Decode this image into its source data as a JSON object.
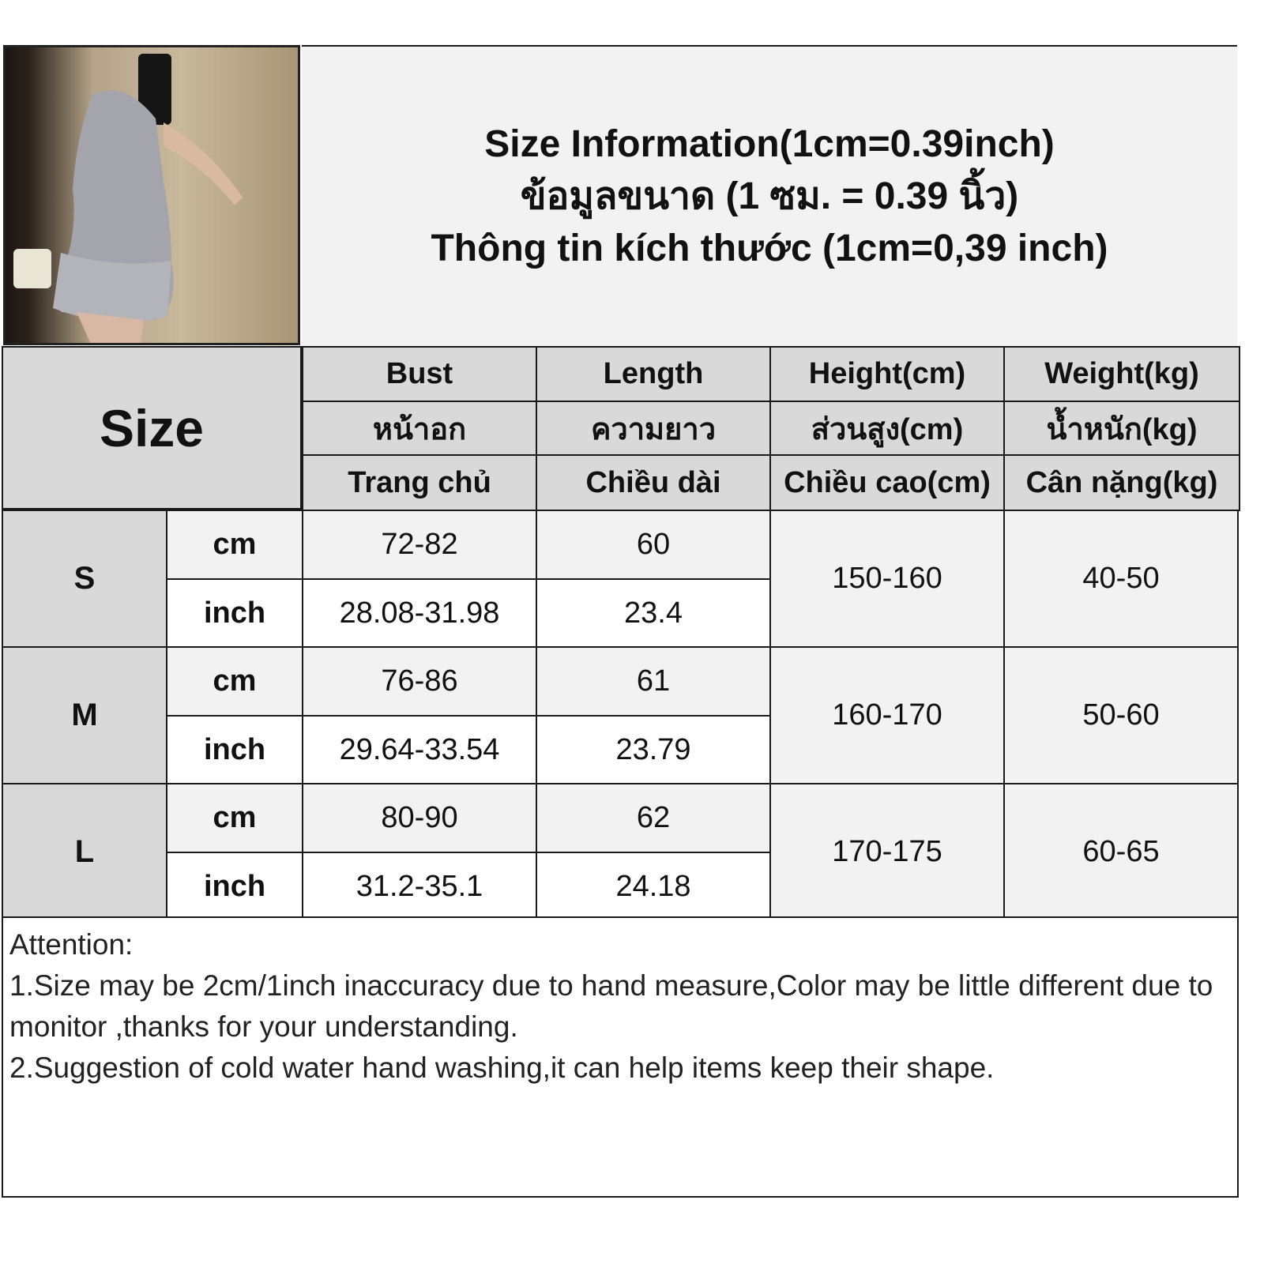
{
  "title": {
    "line1": "Size Information(1cm=0.39inch)",
    "line2": "ข้อมูลขนาด (1 ซม. = 0.39 นิ้ว)",
    "line3": "Thông tin kích thước (1cm=0,39 inch)"
  },
  "table": {
    "size_label": "Size",
    "headers": [
      {
        "en": "Bust",
        "th": "หน้าอก",
        "vi": "Trang chủ"
      },
      {
        "en": "Length",
        "th": "ความยาว",
        "vi": "Chiều dài"
      },
      {
        "en": "Height(cm)",
        "th": "ส่วนสูง(cm)",
        "vi": "Chiều cao(cm)"
      },
      {
        "en": "Weight(kg)",
        "th": "น้ำหนัก(kg)",
        "vi": "Cân nặng(kg)"
      }
    ],
    "rows": [
      {
        "size": "S",
        "cm_label": "cm",
        "inch_label": "inch",
        "bust_cm": "72-82",
        "length_cm": "60",
        "bust_inch": "28.08-31.98",
        "length_inch": "23.4",
        "height": "150-160",
        "weight": "40-50"
      },
      {
        "size": "M",
        "cm_label": "cm",
        "inch_label": "inch",
        "bust_cm": "76-86",
        "length_cm": "61",
        "bust_inch": "29.64-33.54",
        "length_inch": "23.79",
        "height": "160-170",
        "weight": "50-60"
      },
      {
        "size": "L",
        "cm_label": "cm",
        "inch_label": "inch",
        "bust_cm": "80-90",
        "length_cm": "62",
        "bust_inch": "31.2-35.1",
        "length_inch": "24.18",
        "height": "170-175",
        "weight": "60-65"
      }
    ]
  },
  "attention": {
    "heading": "Attention:",
    "line1": "1.Size may be 2cm/1inch inaccuracy due to hand measure,Color may be little different due to monitor ,thanks for your understanding.",
    "line2": "2.Suggestion of cold water hand washing,it can help items keep their shape."
  },
  "colors": {
    "header_bg": "#d9d9d9",
    "light_bg": "#f2f2f2",
    "border": "#1a1a1a"
  }
}
